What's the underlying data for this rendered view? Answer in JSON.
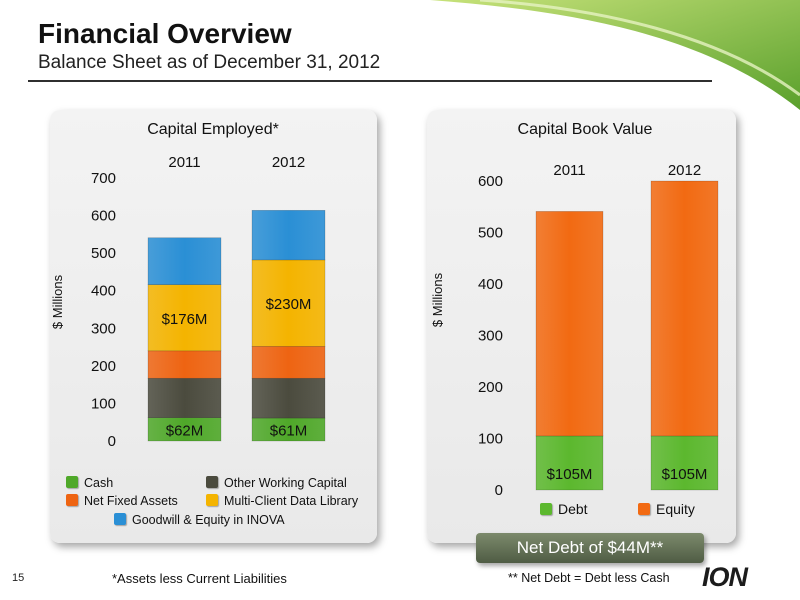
{
  "slide": {
    "title": "Financial Overview",
    "subtitle": "Balance Sheet as of December 31, 2012",
    "page_number": "15",
    "footnote_left": "*Assets less Current Liabilities",
    "footnote_right": "** Net Debt = Debt less Cash",
    "net_debt_label": "Net Debt of $44M**",
    "logo_text": "ION",
    "colors": {
      "accent_green": "#8dc63f",
      "cash": "#4fa829",
      "other_working_capital": "#4b4b3e",
      "net_fixed_assets": "#ee6412",
      "multi_client_data_library": "#f4b400",
      "goodwill_equity_inova": "#2a8fd5",
      "debt": "#5cb82e",
      "equity": "#f26a12"
    }
  },
  "chart_data": [
    {
      "type": "bar",
      "stacked": true,
      "title": "Capital Employed*",
      "ylabel": "$ Millions",
      "xlabel": "",
      "categories": [
        "2011",
        "2012"
      ],
      "ylim": [
        0,
        700
      ],
      "yticks": [
        0,
        100,
        200,
        300,
        400,
        500,
        600,
        700
      ],
      "grid": false,
      "legend_position": "bottom",
      "series": [
        {
          "name": "Cash",
          "values": [
            62,
            61
          ],
          "labels": [
            "$62M",
            "$61M"
          ],
          "color": "#4fa829"
        },
        {
          "name": "Other Working Capital",
          "values": [
            105,
            106
          ],
          "labels": [
            "",
            ""
          ],
          "color": "#4b4b3e"
        },
        {
          "name": "Net Fixed Assets",
          "values": [
            73,
            85
          ],
          "labels": [
            "",
            ""
          ],
          "color": "#ee6412"
        },
        {
          "name": "Multi-Client Data Library",
          "values": [
            176,
            230
          ],
          "labels": [
            "$176M",
            "$230M"
          ],
          "color": "#f4b400"
        },
        {
          "name": "Goodwill & Equity in INOVA",
          "values": [
            125,
            132
          ],
          "labels": [
            "",
            ""
          ],
          "color": "#2a8fd5"
        }
      ]
    },
    {
      "type": "bar",
      "stacked": true,
      "title": "Capital Book Value",
      "ylabel": "$ Millions",
      "xlabel": "",
      "categories": [
        "2011",
        "2012"
      ],
      "ylim": [
        0,
        600
      ],
      "yticks": [
        0,
        100,
        200,
        300,
        400,
        500,
        600
      ],
      "grid": false,
      "legend_position": "bottom",
      "series": [
        {
          "name": "Debt",
          "values": [
            105,
            105
          ],
          "labels": [
            "$105M",
            "$105M"
          ],
          "color": "#5cb82e"
        },
        {
          "name": "Equity",
          "values": [
            436,
            495
          ],
          "labels": [
            "",
            ""
          ],
          "color": "#f26a12"
        }
      ]
    }
  ]
}
